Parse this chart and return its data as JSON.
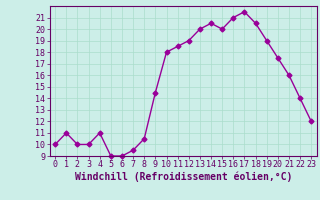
{
  "x": [
    0,
    1,
    2,
    3,
    4,
    5,
    6,
    7,
    8,
    9,
    10,
    11,
    12,
    13,
    14,
    15,
    16,
    17,
    18,
    19,
    20,
    21,
    22,
    23
  ],
  "y": [
    10,
    11,
    10,
    10,
    11,
    9,
    9,
    9.5,
    10.5,
    14.5,
    18,
    18.5,
    19,
    20,
    20.5,
    20,
    21,
    21.5,
    20.5,
    19,
    17.5,
    16,
    14,
    12
  ],
  "line_color": "#990099",
  "marker": "D",
  "marker_size": 2.5,
  "bg_color": "#cceee8",
  "grid_color": "#aaddcc",
  "xlabel": "Windchill (Refroidissement éolien,°C)",
  "xlabel_color": "#660066",
  "tick_color": "#660066",
  "ylim": [
    9,
    22
  ],
  "xlim": [
    -0.5,
    23.5
  ],
  "yticks": [
    9,
    10,
    11,
    12,
    13,
    14,
    15,
    16,
    17,
    18,
    19,
    20,
    21
  ],
  "xticks": [
    0,
    1,
    2,
    3,
    4,
    5,
    6,
    7,
    8,
    9,
    10,
    11,
    12,
    13,
    14,
    15,
    16,
    17,
    18,
    19,
    20,
    21,
    22,
    23
  ],
  "spine_color": "#660066",
  "tick_fontsize": 6,
  "xlabel_fontsize": 7
}
